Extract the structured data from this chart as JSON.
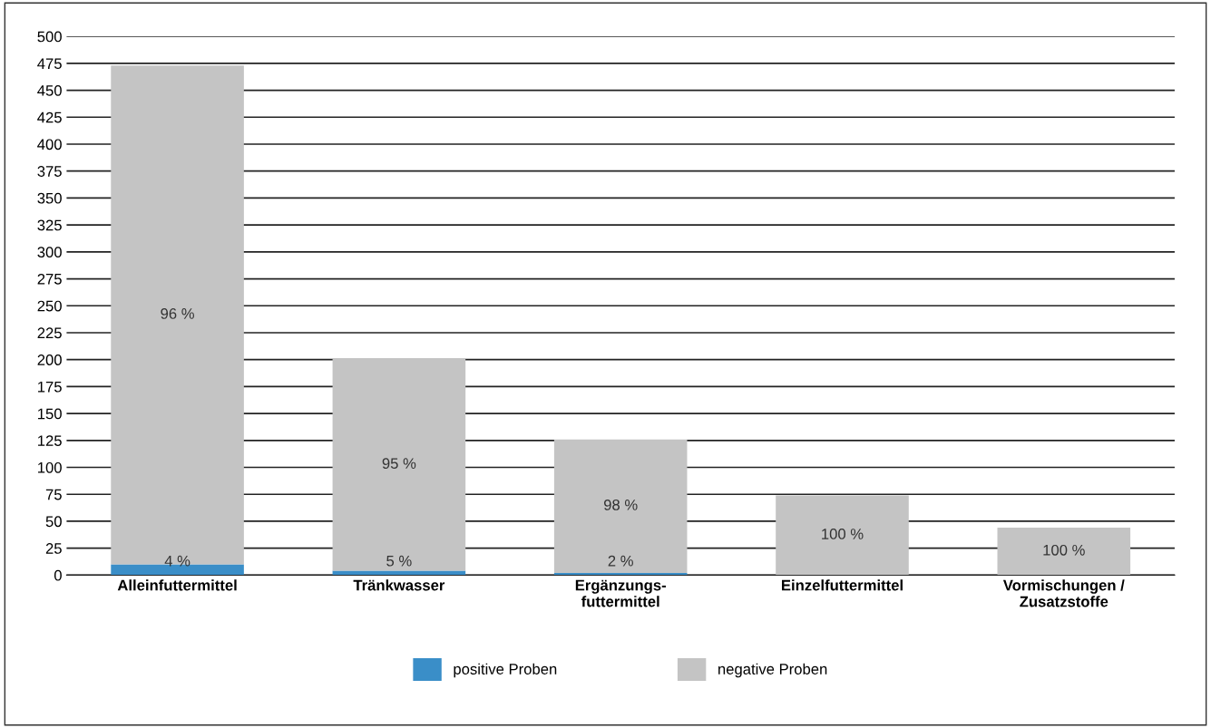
{
  "chart_data": {
    "type": "bar",
    "stacked": true,
    "categories": [
      "Alleinfuttermittel",
      "Tränkwasser",
      "Ergänzungs-\nfuttermittel",
      "Einzelfuttermittel",
      "Vormischungen /\nZusatzstoffe"
    ],
    "series": [
      {
        "name": "positive Proben",
        "color": "#3a8ec8",
        "values": [
          10,
          4,
          2,
          0,
          0
        ]
      },
      {
        "name": "negative Proben",
        "color": "#c4c4c4",
        "values": [
          463,
          197,
          124,
          74,
          44
        ]
      }
    ],
    "annotations": [
      "4 %",
      "96 %",
      "5 %",
      "95 %",
      "2 %",
      "98 %",
      "100 %",
      "100 %"
    ],
    "ylim": [
      0,
      500
    ],
    "yticks": [
      0,
      25,
      50,
      75,
      100,
      125,
      150,
      175,
      200,
      225,
      250,
      275,
      300,
      325,
      350,
      375,
      400,
      425,
      450,
      475,
      500
    ],
    "grid": "y",
    "legend": "bottom"
  }
}
